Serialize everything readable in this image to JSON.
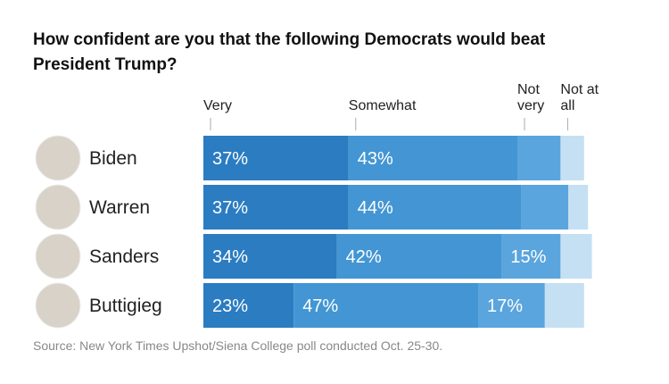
{
  "chart_data": {
    "type": "stacked-bar",
    "title": "How confident are you that the following Democrats would beat President Trump?",
    "source": "Source: New York Times Upshot/Siena College poll conducted Oct. 25-30.",
    "categories": [
      "Biden",
      "Warren",
      "Sanders",
      "Buttigieg"
    ],
    "series": [
      {
        "name": "Very",
        "color": "#2b7cc1",
        "values": [
          37,
          37,
          34,
          23
        ],
        "value_labels": [
          "37%",
          "37%",
          "34%",
          "23%"
        ]
      },
      {
        "name": "Somewhat",
        "color": "#4396d3",
        "values": [
          43,
          44,
          42,
          47
        ],
        "value_labels": [
          "43%",
          "44%",
          "42%",
          "47%"
        ]
      },
      {
        "name": "Not very",
        "color": "#5aa5dd",
        "values": [
          11,
          12,
          15,
          17
        ],
        "value_labels": [
          null,
          null,
          "15%",
          "17%"
        ]
      },
      {
        "name": "Not at all",
        "color": "#c6e0f3",
        "values": [
          6,
          5,
          8,
          10
        ],
        "value_labels": [
          null,
          null,
          null,
          null
        ]
      }
    ]
  }
}
